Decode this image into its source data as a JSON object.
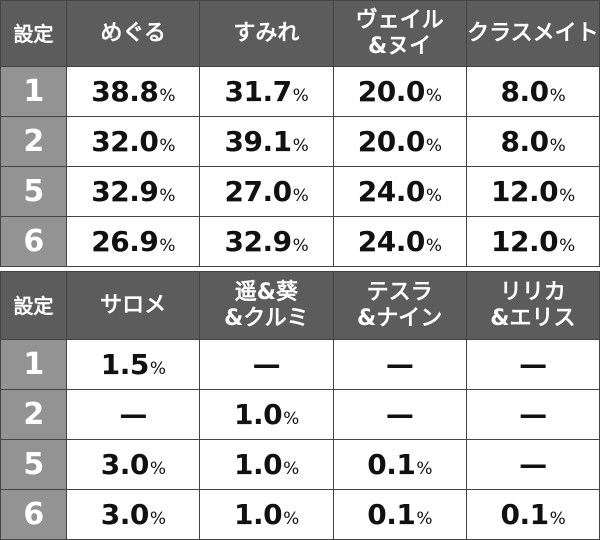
{
  "table1": {
    "headers": [
      "設定",
      "めぐる",
      "すみれ",
      "ヴェイル\n&ヌイ",
      "クラスメイト"
    ],
    "rows": [
      {
        "setting": "1",
        "values": [
          "38.8",
          "31.7",
          "20.0",
          "8.0"
        ]
      },
      {
        "setting": "2",
        "values": [
          "32.0",
          "39.1",
          "20.0",
          "8.0"
        ]
      },
      {
        "setting": "5",
        "values": [
          "32.9",
          "27.0",
          "24.0",
          "12.0"
        ]
      },
      {
        "setting": "6",
        "values": [
          "26.9",
          "32.9",
          "24.0",
          "12.0"
        ]
      }
    ]
  },
  "table2": {
    "headers": [
      "設定",
      "サロメ",
      "遥&葵\n&クルミ",
      "テスラ\n&ナイン",
      "リリカ\n&エリス"
    ],
    "rows": [
      {
        "setting": "1",
        "values": [
          "1.5",
          "—",
          "—",
          "—"
        ]
      },
      {
        "setting": "2",
        "values": [
          "—",
          "1.0",
          "—",
          "—"
        ]
      },
      {
        "setting": "5",
        "values": [
          "3.0",
          "1.0",
          "0.1",
          "—"
        ]
      },
      {
        "setting": "6",
        "values": [
          "3.0",
          "1.0",
          "0.1",
          "0.1"
        ]
      }
    ]
  },
  "unit": "%",
  "colors": {
    "header_bg": "#5c5c5c",
    "setting_col_bg": "#939393",
    "border": "#444444"
  }
}
